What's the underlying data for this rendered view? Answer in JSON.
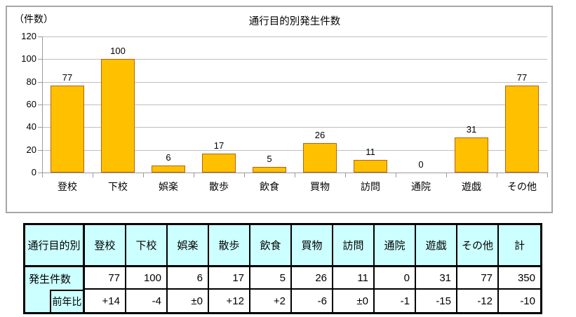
{
  "chart": {
    "unit_label": "（件数）",
    "title": "通行目的別発生件数"
  },
  "chart_data": {
    "type": "bar",
    "title": "通行目的別発生件数",
    "unit_label": "（件数）",
    "categories": [
      "登校",
      "下校",
      "娯楽",
      "散歩",
      "飲食",
      "買物",
      "訪問",
      "通院",
      "遊戯",
      "その他"
    ],
    "values": [
      77,
      100,
      6,
      17,
      5,
      26,
      11,
      0,
      31,
      77
    ],
    "data_labels_shown": true,
    "ylim": [
      0,
      120
    ],
    "yticks": [
      0,
      20,
      40,
      60,
      80,
      100,
      120
    ],
    "grid": true,
    "legend": "none",
    "bar_color": "#FFC000",
    "bar_border_color": "#B46309"
  },
  "table": {
    "header": [
      "通行目的別",
      "登校",
      "下校",
      "娯楽",
      "散歩",
      "飲食",
      "買物",
      "訪問",
      "通院",
      "遊戯",
      "その他",
      "計"
    ],
    "rows": [
      {
        "label": "発生件数",
        "values": [
          "77",
          "100",
          "6",
          "17",
          "5",
          "26",
          "11",
          "0",
          "31",
          "77",
          "350"
        ]
      },
      {
        "label": "前年比",
        "values": [
          "+14",
          "-4",
          "±0",
          "+12",
          "+2",
          "-6",
          "±0",
          "-1",
          "-15",
          "-12",
          "-10"
        ]
      }
    ],
    "header_bg": "#CCFFFF"
  }
}
